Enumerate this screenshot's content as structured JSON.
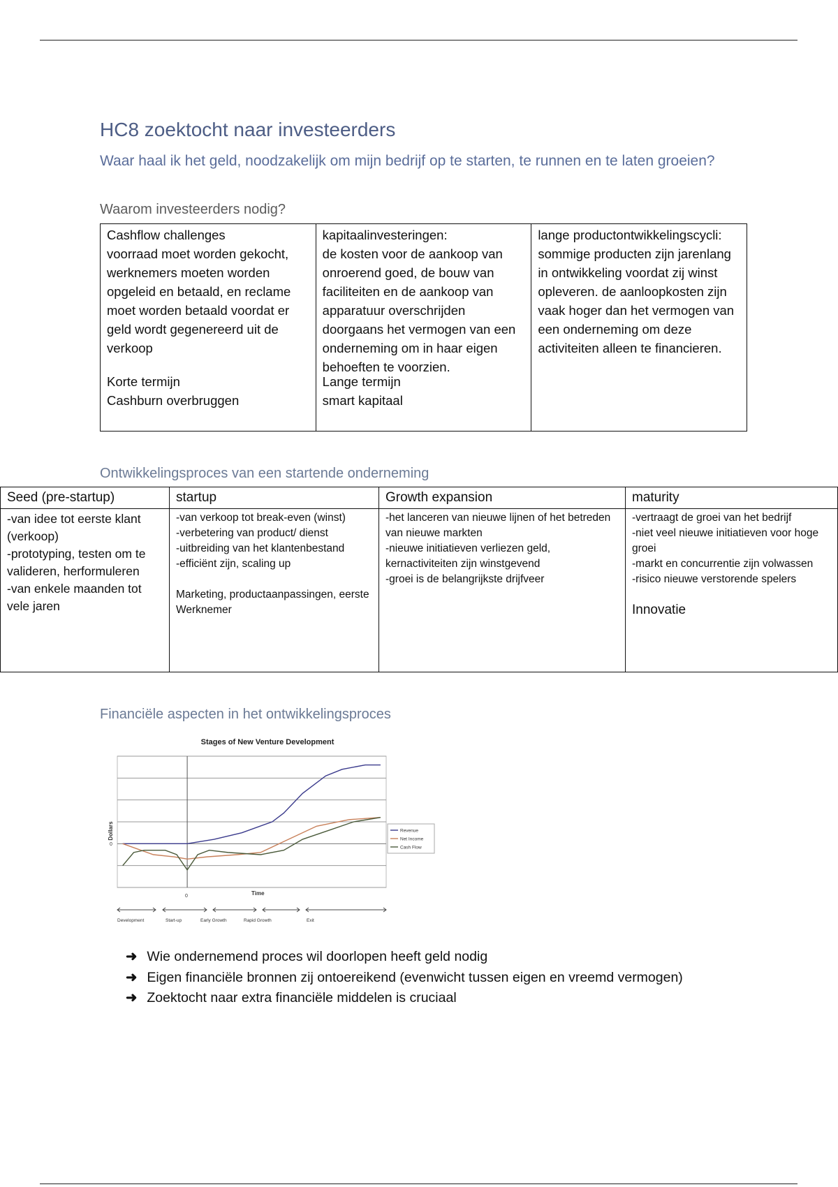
{
  "title": "HC8 zoektocht naar investeerders",
  "subtitle": "Waar haal ik het geld, noodzakelijk om mijn bedrijf op te starten, te runnen en te laten groeien?",
  "section1": {
    "heading": "Waarom investeerders nodig?",
    "columns": [
      {
        "title": "Cashflow challenges",
        "text": "voorraad moet worden gekocht, werknemers moeten worden opgeleid en betaald, en reclame moet worden betaald voordat er geld wordt gegenereerd uit de verkoop",
        "footer1": "Korte termijn",
        "footer2": "Cashburn overbruggen"
      },
      {
        "title": "kapitaalinvesteringen:",
        "text": "de kosten voor de aankoop van onroerend goed, de bouw van faciliteiten en de aankoop van apparatuur overschrijden doorgaans het vermogen van een onderneming om in haar eigen behoeften te voorzien.",
        "footer1": "Lange termijn",
        "footer2": "smart kapitaal"
      },
      {
        "title": "lange productontwikkelingscycli:",
        "text": "sommige producten zijn jarenlang in ontwikkeling voordat zij winst opleveren. de aanloopkosten zijn vaak hoger dan het vermogen van een onderneming om deze activiteiten alleen te financieren."
      }
    ]
  },
  "section2": {
    "heading": "Ontwikkelingsproces van een startende onderneming",
    "headers": [
      "Seed (pre-startup)",
      "startup",
      "Growth expansion",
      "maturity"
    ],
    "seed": [
      "-van idee tot eerste klant (verkoop)",
      "-prototyping, testen om te valideren, herformuleren",
      "-van enkele maanden tot vele jaren"
    ],
    "startup": [
      "-van verkoop tot break-even (winst)",
      "-verbetering van product/ dienst",
      "-uitbreiding van het klantenbestand",
      "-efficiënt zijn, scaling up"
    ],
    "startup_note": "Marketing, productaanpassingen, eerste Werknemer",
    "growth": [
      "-het lanceren van nieuwe lijnen of het betreden van nieuwe markten",
      "-nieuwe initiatieven verliezen geld, kernactiviteiten zijn winstgevend",
      "-groei is de belangrijkste drijfveer"
    ],
    "maturity": [
      "-vertraagt de groei van het bedrijf",
      "-niet veel nieuwe initiatieven voor hoge groei",
      "-markt en concurrentie zijn volwassen",
      "-risico nieuwe verstorende spelers"
    ],
    "maturity_note": "Innovatie"
  },
  "section3": {
    "heading": "Financiële aspecten in het ontwikkelingsproces",
    "bullets": [
      "Wie ondernemend proces wil doorlopen heeft geld nodig",
      "Eigen financiële bronnen zij ontoereikend (evenwicht tussen eigen en vreemd vermogen)",
      "Zoektocht naar extra financiële middelen is cruciaal"
    ],
    "bullet_icon": "right-arrow-icon"
  },
  "chart_data": {
    "type": "line",
    "title": "Stages of New Venture Development",
    "xlabel": "Time",
    "ylabel": "Dollars",
    "x_tick_labels": [
      "0"
    ],
    "y_tick_labels": [
      "0"
    ],
    "xlim": [
      -26,
      74
    ],
    "ylim": [
      -2,
      4
    ],
    "grid": "horizontal",
    "legend": "right",
    "stages": [
      "Development",
      "Start-up",
      "Early Growth",
      "Rapid Growth",
      "Exit"
    ],
    "series": [
      {
        "name": "Revenue",
        "color": "#3a3a8c",
        "points": [
          [
            -24,
            0
          ],
          [
            0,
            0
          ],
          [
            10,
            0.2
          ],
          [
            20.3,
            0.5
          ],
          [
            31.6,
            1.0
          ],
          [
            35.9,
            1.4
          ],
          [
            42.9,
            2.3
          ],
          [
            51.5,
            3.1
          ],
          [
            57.6,
            3.4
          ],
          [
            66.2,
            3.6
          ],
          [
            71.9,
            3.6
          ]
        ]
      },
      {
        "name": "Net Income",
        "color": "#c8805a",
        "points": [
          [
            -24,
            0
          ],
          [
            -12.6,
            -0.5
          ],
          [
            -4.8,
            -0.6
          ],
          [
            0,
            -0.7
          ],
          [
            7.4,
            -0.6
          ],
          [
            18.6,
            -0.5
          ],
          [
            27.3,
            -0.4
          ],
          [
            35.9,
            0.1
          ],
          [
            48.1,
            0.8
          ],
          [
            60.2,
            1.1
          ],
          [
            71.9,
            1.2
          ]
        ]
      },
      {
        "name": "Cash Flow",
        "color": "#4a5a3a",
        "points": [
          [
            -24,
            -1.0
          ],
          [
            -19.9,
            -0.4
          ],
          [
            -16,
            -0.3
          ],
          [
            -8.2,
            -0.3
          ],
          [
            -3.9,
            -0.5
          ],
          [
            0,
            -1.2
          ],
          [
            3.9,
            -0.5
          ],
          [
            8.2,
            -0.3
          ],
          [
            15.2,
            -0.4
          ],
          [
            27.3,
            -0.5
          ],
          [
            35.9,
            -0.3
          ],
          [
            42.9,
            0.2
          ],
          [
            52.4,
            0.6
          ],
          [
            61.9,
            1.0
          ],
          [
            71.9,
            1.2
          ]
        ]
      }
    ]
  }
}
